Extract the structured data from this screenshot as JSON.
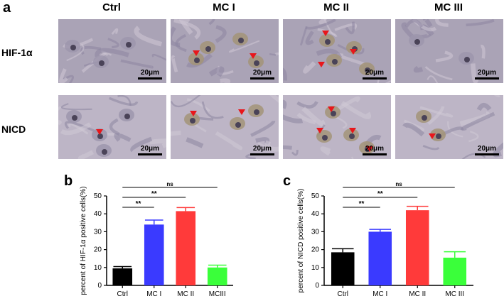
{
  "figure": {
    "panel_a": "a",
    "panel_b": "b",
    "panel_c": "c",
    "columns": [
      "Ctrl",
      "MC I",
      "MC II",
      "MC III"
    ],
    "rows": [
      "HIF-1α",
      "NICD"
    ],
    "scale_bar": "20μm",
    "arrow_color": "#e8161b"
  },
  "chart_data": [
    {
      "type": "bar",
      "panel": "b",
      "categories": [
        "Ctrl",
        "MC I",
        "MC II",
        "MCIII"
      ],
      "values": [
        9.5,
        34,
        41.5,
        10
      ],
      "errors": [
        1,
        2.5,
        2,
        1.3
      ],
      "colors": [
        "#000000",
        "#3a3aff",
        "#ff3a3a",
        "#3aff3a"
      ],
      "ylabel": "percent of HIF-1α positive cells(%)",
      "xlabel": "",
      "ylim": [
        0,
        50
      ],
      "yticks": [
        0,
        10,
        20,
        30,
        40,
        50
      ],
      "significance": [
        {
          "from": 0,
          "to": 1,
          "label": "**"
        },
        {
          "from": 0,
          "to": 2,
          "label": "**"
        },
        {
          "from": 0,
          "to": 3,
          "label": "ns"
        }
      ]
    },
    {
      "type": "bar",
      "panel": "c",
      "categories": [
        "Ctrl",
        "MC I",
        "MC II",
        "MC III"
      ],
      "values": [
        18.5,
        30,
        42,
        15.5
      ],
      "errors": [
        2,
        1.3,
        2.2,
        3.3
      ],
      "colors": [
        "#000000",
        "#3a3aff",
        "#ff3a3a",
        "#3aff3a"
      ],
      "ylabel": "percent of NICD positive cells(%)",
      "xlabel": "",
      "ylim": [
        0,
        50
      ],
      "yticks": [
        0,
        10,
        20,
        30,
        40,
        50
      ],
      "significance": [
        {
          "from": 0,
          "to": 1,
          "label": "**"
        },
        {
          "from": 0,
          "to": 2,
          "label": "**"
        },
        {
          "from": 0,
          "to": 3,
          "label": "ns"
        }
      ]
    }
  ]
}
